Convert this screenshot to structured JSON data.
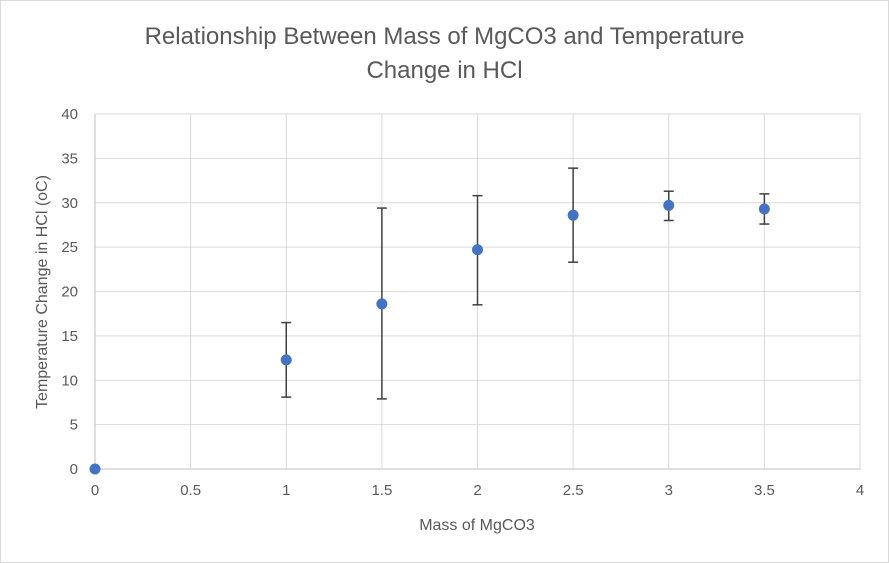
{
  "chart_data": {
    "type": "scatter",
    "title_line1": "Relationship Between Mass of MgCO3 and Temperature",
    "title_line2": "Change in HCl",
    "xlabel": "Mass of MgCO3",
    "ylabel": "Temperature Change in HCl (oC)",
    "xlim": [
      0,
      4
    ],
    "ylim": [
      0,
      40
    ],
    "x_ticks": [
      0,
      0.5,
      1,
      1.5,
      2,
      2.5,
      3,
      3.5,
      4
    ],
    "y_ticks": [
      0,
      5,
      10,
      15,
      20,
      25,
      30,
      35,
      40
    ],
    "grid": true,
    "legend": "none",
    "marker_color": "#4472c4",
    "errorbar_color": "#404040",
    "points": [
      {
        "x": 0,
        "y": 0,
        "low": null,
        "high": null
      },
      {
        "x": 1,
        "y": 12.3,
        "low": 8.1,
        "high": 16.5
      },
      {
        "x": 1.5,
        "y": 18.6,
        "low": 7.9,
        "high": 29.4
      },
      {
        "x": 2,
        "y": 24.7,
        "low": 18.5,
        "high": 30.8
      },
      {
        "x": 2.5,
        "y": 28.6,
        "low": 23.3,
        "high": 33.9
      },
      {
        "x": 3,
        "y": 29.7,
        "low": 28.0,
        "high": 31.3
      },
      {
        "x": 3.5,
        "y": 29.3,
        "low": 27.6,
        "high": 31.0
      }
    ]
  }
}
